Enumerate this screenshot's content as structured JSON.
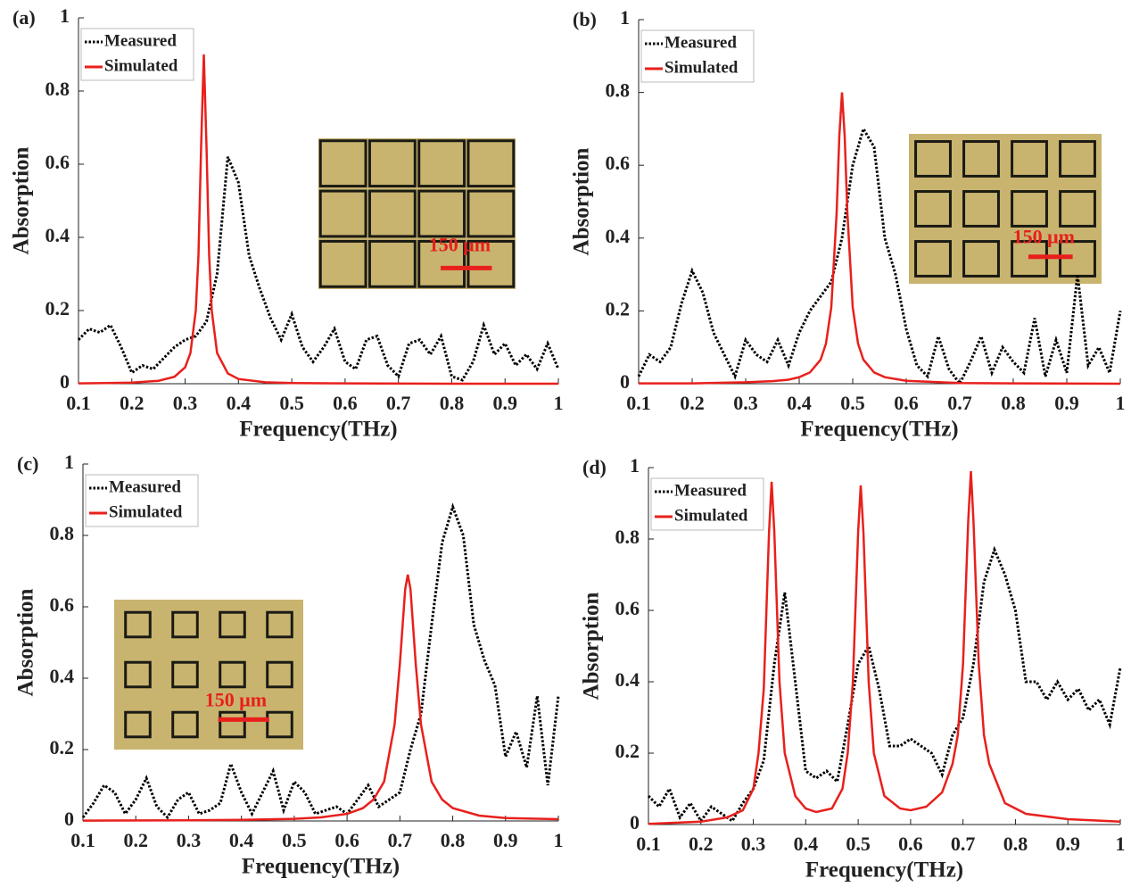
{
  "chart_data": [
    {
      "type": "line",
      "panel_label": "(a)",
      "x_label": "Frequency(THz)",
      "y_label": "Absorption",
      "annotation": "150 μm",
      "xlim": [
        0.1,
        1
      ],
      "ylim": [
        0,
        1
      ],
      "xticks": [
        0.1,
        0.2,
        0.3,
        0.4,
        0.5,
        0.6,
        0.7,
        0.8,
        0.9,
        1
      ],
      "yticks": [
        0,
        0.2,
        0.4,
        0.6,
        0.8,
        1
      ],
      "legend": "upper left",
      "series": [
        {
          "name": "Measured",
          "color": "#000000",
          "style": "dotted",
          "x": [
            0.1,
            0.12,
            0.14,
            0.16,
            0.18,
            0.2,
            0.22,
            0.24,
            0.26,
            0.28,
            0.3,
            0.32,
            0.34,
            0.36,
            0.38,
            0.4,
            0.42,
            0.44,
            0.46,
            0.48,
            0.5,
            0.52,
            0.54,
            0.56,
            0.58,
            0.6,
            0.62,
            0.64,
            0.66,
            0.68,
            0.7,
            0.72,
            0.74,
            0.76,
            0.78,
            0.8,
            0.82,
            0.84,
            0.86,
            0.88,
            0.9,
            0.92,
            0.94,
            0.96,
            0.98,
            1.0
          ],
          "values": [
            0.12,
            0.15,
            0.14,
            0.16,
            0.1,
            0.03,
            0.05,
            0.04,
            0.07,
            0.1,
            0.12,
            0.13,
            0.17,
            0.3,
            0.62,
            0.55,
            0.35,
            0.26,
            0.18,
            0.12,
            0.19,
            0.1,
            0.06,
            0.1,
            0.15,
            0.06,
            0.04,
            0.12,
            0.13,
            0.05,
            0.02,
            0.11,
            0.12,
            0.08,
            0.13,
            0.02,
            0.01,
            0.06,
            0.16,
            0.08,
            0.11,
            0.05,
            0.08,
            0.04,
            0.11,
            0.04
          ]
        },
        {
          "name": "Simulated",
          "color": "#e8201c",
          "style": "solid",
          "x": [
            0.1,
            0.2,
            0.25,
            0.28,
            0.3,
            0.31,
            0.32,
            0.325,
            0.33,
            0.335,
            0.34,
            0.345,
            0.35,
            0.36,
            0.38,
            0.4,
            0.45,
            0.5,
            0.6,
            0.8,
            1.0
          ],
          "values": [
            0.001,
            0.003,
            0.008,
            0.019,
            0.045,
            0.084,
            0.2,
            0.35,
            0.65,
            0.9,
            0.65,
            0.35,
            0.2,
            0.084,
            0.028,
            0.013,
            0.004,
            0.002,
            0.001,
            0.0,
            0.0
          ]
        }
      ]
    },
    {
      "type": "line",
      "panel_label": "(b)",
      "x_label": "Frequency(THz)",
      "y_label": "Absorption",
      "annotation": "150 μm",
      "xlim": [
        0.1,
        1
      ],
      "ylim": [
        0,
        1
      ],
      "xticks": [
        0.1,
        0.2,
        0.3,
        0.4,
        0.5,
        0.6,
        0.7,
        0.8,
        0.9,
        1
      ],
      "yticks": [
        0,
        0.2,
        0.4,
        0.6,
        0.8,
        1
      ],
      "legend": "upper left",
      "series": [
        {
          "name": "Measured",
          "color": "#000000",
          "style": "dotted",
          "x": [
            0.1,
            0.12,
            0.14,
            0.16,
            0.18,
            0.2,
            0.22,
            0.24,
            0.26,
            0.28,
            0.3,
            0.32,
            0.34,
            0.36,
            0.38,
            0.4,
            0.42,
            0.44,
            0.46,
            0.48,
            0.5,
            0.52,
            0.54,
            0.56,
            0.58,
            0.6,
            0.62,
            0.64,
            0.66,
            0.68,
            0.7,
            0.72,
            0.74,
            0.76,
            0.78,
            0.8,
            0.82,
            0.84,
            0.86,
            0.88,
            0.9,
            0.92,
            0.94,
            0.96,
            0.98,
            1.0
          ],
          "values": [
            0.02,
            0.08,
            0.06,
            0.1,
            0.22,
            0.31,
            0.25,
            0.14,
            0.08,
            0.02,
            0.12,
            0.08,
            0.06,
            0.12,
            0.05,
            0.14,
            0.2,
            0.24,
            0.28,
            0.4,
            0.6,
            0.7,
            0.65,
            0.4,
            0.3,
            0.15,
            0.05,
            0.02,
            0.13,
            0.04,
            0.0,
            0.06,
            0.13,
            0.03,
            0.1,
            0.06,
            0.03,
            0.18,
            0.02,
            0.12,
            0.03,
            0.3,
            0.05,
            0.1,
            0.03,
            0.2
          ]
        },
        {
          "name": "Simulated",
          "color": "#e8201c",
          "style": "solid",
          "x": [
            0.1,
            0.2,
            0.3,
            0.35,
            0.38,
            0.4,
            0.42,
            0.44,
            0.45,
            0.46,
            0.47,
            0.475,
            0.48,
            0.485,
            0.49,
            0.5,
            0.51,
            0.52,
            0.54,
            0.56,
            0.6,
            0.7,
            0.8,
            1.0
          ],
          "values": [
            0.001,
            0.001,
            0.004,
            0.007,
            0.011,
            0.018,
            0.031,
            0.066,
            0.11,
            0.21,
            0.47,
            0.68,
            0.8,
            0.68,
            0.47,
            0.21,
            0.11,
            0.066,
            0.031,
            0.018,
            0.008,
            0.002,
            0.001,
            0.0
          ]
        }
      ]
    },
    {
      "type": "line",
      "panel_label": "(c)",
      "x_label": "Frequency(THz)",
      "y_label": "Absorption",
      "annotation": "150 μm",
      "xlim": [
        0.1,
        1
      ],
      "ylim": [
        0,
        1
      ],
      "xticks": [
        0.1,
        0.2,
        0.3,
        0.4,
        0.5,
        0.6,
        0.7,
        0.8,
        0.9,
        1
      ],
      "yticks": [
        0,
        0.2,
        0.4,
        0.6,
        0.8,
        1
      ],
      "legend": "upper left",
      "series": [
        {
          "name": "Measured",
          "color": "#000000",
          "style": "dotted",
          "x": [
            0.1,
            0.12,
            0.14,
            0.16,
            0.18,
            0.2,
            0.22,
            0.24,
            0.26,
            0.28,
            0.3,
            0.32,
            0.34,
            0.36,
            0.38,
            0.4,
            0.42,
            0.44,
            0.46,
            0.48,
            0.5,
            0.52,
            0.54,
            0.56,
            0.58,
            0.6,
            0.62,
            0.64,
            0.66,
            0.68,
            0.7,
            0.72,
            0.74,
            0.76,
            0.78,
            0.8,
            0.82,
            0.84,
            0.86,
            0.88,
            0.9,
            0.92,
            0.94,
            0.96,
            0.98,
            1.0
          ],
          "values": [
            0.01,
            0.05,
            0.1,
            0.08,
            0.02,
            0.06,
            0.12,
            0.04,
            0.01,
            0.06,
            0.08,
            0.02,
            0.03,
            0.05,
            0.16,
            0.08,
            0.02,
            0.08,
            0.14,
            0.03,
            0.11,
            0.08,
            0.02,
            0.03,
            0.04,
            0.02,
            0.06,
            0.1,
            0.04,
            0.06,
            0.08,
            0.2,
            0.3,
            0.55,
            0.78,
            0.88,
            0.8,
            0.55,
            0.45,
            0.38,
            0.18,
            0.25,
            0.15,
            0.35,
            0.1,
            0.35
          ]
        },
        {
          "name": "Simulated",
          "color": "#e8201c",
          "style": "solid",
          "x": [
            0.1,
            0.3,
            0.4,
            0.5,
            0.55,
            0.6,
            0.63,
            0.65,
            0.67,
            0.69,
            0.7,
            0.71,
            0.715,
            0.72,
            0.73,
            0.74,
            0.76,
            0.78,
            0.8,
            0.85,
            0.9,
            1.0
          ],
          "values": [
            0.001,
            0.002,
            0.003,
            0.006,
            0.01,
            0.02,
            0.036,
            0.06,
            0.11,
            0.27,
            0.44,
            0.65,
            0.69,
            0.65,
            0.44,
            0.27,
            0.11,
            0.06,
            0.036,
            0.015,
            0.008,
            0.005
          ]
        }
      ]
    },
    {
      "type": "line",
      "panel_label": "(d)",
      "x_label": "Frequency(THz)",
      "y_label": "Absorption",
      "xlim": [
        0.1,
        1
      ],
      "ylim": [
        0,
        1
      ],
      "xticks": [
        0.1,
        0.2,
        0.3,
        0.4,
        0.5,
        0.6,
        0.7,
        0.8,
        0.9,
        1
      ],
      "yticks": [
        0,
        0.2,
        0.4,
        0.6,
        0.8,
        1
      ],
      "legend": "upper left",
      "series": [
        {
          "name": "Measured",
          "color": "#000000",
          "style": "dotted",
          "x": [
            0.1,
            0.12,
            0.14,
            0.16,
            0.18,
            0.2,
            0.22,
            0.24,
            0.26,
            0.28,
            0.3,
            0.32,
            0.34,
            0.36,
            0.38,
            0.4,
            0.42,
            0.44,
            0.46,
            0.48,
            0.5,
            0.52,
            0.54,
            0.56,
            0.58,
            0.6,
            0.62,
            0.64,
            0.66,
            0.68,
            0.7,
            0.72,
            0.74,
            0.76,
            0.78,
            0.8,
            0.82,
            0.84,
            0.86,
            0.88,
            0.9,
            0.92,
            0.94,
            0.96,
            0.98,
            1.0
          ],
          "values": [
            0.08,
            0.05,
            0.1,
            0.02,
            0.06,
            0.01,
            0.05,
            0.03,
            0.01,
            0.06,
            0.1,
            0.18,
            0.45,
            0.65,
            0.4,
            0.15,
            0.13,
            0.15,
            0.12,
            0.28,
            0.45,
            0.5,
            0.38,
            0.22,
            0.22,
            0.24,
            0.22,
            0.2,
            0.14,
            0.25,
            0.3,
            0.45,
            0.68,
            0.77,
            0.7,
            0.6,
            0.4,
            0.4,
            0.35,
            0.4,
            0.35,
            0.38,
            0.32,
            0.35,
            0.28,
            0.44
          ]
        },
        {
          "name": "Simulated",
          "color": "#e8201c",
          "style": "solid",
          "x": [
            0.1,
            0.2,
            0.25,
            0.28,
            0.3,
            0.31,
            0.32,
            0.33,
            0.335,
            0.34,
            0.35,
            0.36,
            0.38,
            0.4,
            0.42,
            0.45,
            0.47,
            0.48,
            0.49,
            0.5,
            0.505,
            0.51,
            0.52,
            0.53,
            0.55,
            0.58,
            0.6,
            0.63,
            0.66,
            0.68,
            0.69,
            0.7,
            0.71,
            0.715,
            0.72,
            0.73,
            0.74,
            0.75,
            0.78,
            0.82,
            0.9,
            1.0
          ],
          "values": [
            0.002,
            0.008,
            0.02,
            0.04,
            0.1,
            0.2,
            0.38,
            0.82,
            0.96,
            0.82,
            0.4,
            0.2,
            0.08,
            0.045,
            0.035,
            0.045,
            0.1,
            0.2,
            0.4,
            0.82,
            0.95,
            0.82,
            0.4,
            0.2,
            0.08,
            0.045,
            0.04,
            0.05,
            0.09,
            0.17,
            0.25,
            0.45,
            0.85,
            0.99,
            0.85,
            0.45,
            0.25,
            0.17,
            0.06,
            0.03,
            0.015,
            0.008
          ]
        }
      ]
    }
  ]
}
